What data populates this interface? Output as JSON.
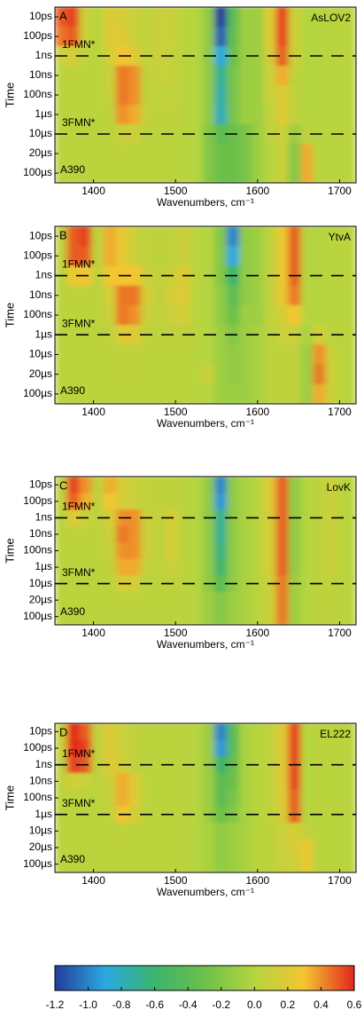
{
  "chart_data": [
    {
      "type": "heatmap",
      "panel": "A",
      "label": "AsLOV2",
      "sample": "A390",
      "ylabel": "Time",
      "xlabel": "Wavenumbers, cm⁻¹",
      "x": [
        1360,
        1375,
        1390,
        1405,
        1420,
        1435,
        1450,
        1465,
        1480,
        1495,
        1510,
        1525,
        1540,
        1555,
        1570,
        1585,
        1600,
        1615,
        1630,
        1645,
        1660,
        1675,
        1690,
        1705,
        1720
      ],
      "categories": [
        "10ps",
        "100ps",
        "1ns",
        "10ns",
        "100ns",
        "1µs",
        "10µs",
        "20µs",
        "100µs"
      ],
      "z": [
        [
          0.5,
          0.55,
          0.1,
          0.02,
          0.2,
          0.15,
          0.1,
          0.05,
          0.1,
          0.1,
          0.02,
          0.0,
          -0.15,
          -1.2,
          -0.4,
          -0.1,
          -0.1,
          0.2,
          0.55,
          0.1,
          0.0,
          0.0,
          0.02,
          0.02,
          0.02
        ],
        [
          0.45,
          0.5,
          0.1,
          0.02,
          0.2,
          0.2,
          0.1,
          0.05,
          0.1,
          0.1,
          0.02,
          0.0,
          -0.15,
          -1.1,
          -0.35,
          -0.1,
          -0.1,
          0.2,
          0.55,
          0.1,
          0.0,
          0.0,
          0.02,
          0.02,
          0.02
        ],
        [
          0.1,
          0.15,
          0.05,
          0.02,
          0.15,
          0.3,
          0.2,
          0.05,
          0.1,
          0.08,
          0.02,
          0.0,
          -0.15,
          -0.9,
          -0.3,
          -0.1,
          -0.1,
          0.15,
          0.5,
          0.1,
          0.0,
          0.0,
          0.02,
          0.02,
          0.02
        ],
        [
          0.03,
          0.05,
          0.03,
          0.02,
          0.1,
          0.45,
          0.4,
          0.05,
          0.08,
          0.08,
          0.02,
          0.0,
          -0.15,
          -0.7,
          -0.25,
          -0.1,
          -0.1,
          0.1,
          0.35,
          0.05,
          0.0,
          0.0,
          0.02,
          0.02,
          0.02
        ],
        [
          0.03,
          0.03,
          0.03,
          0.02,
          0.08,
          0.45,
          0.4,
          0.05,
          0.06,
          0.06,
          0.02,
          0.0,
          -0.15,
          -0.75,
          -0.25,
          -0.1,
          -0.1,
          0.1,
          0.2,
          0.05,
          0.0,
          0.0,
          0.02,
          0.02,
          0.02
        ],
        [
          0.03,
          0.03,
          0.03,
          0.02,
          0.05,
          0.4,
          0.35,
          0.05,
          0.05,
          0.05,
          0.02,
          0.0,
          -0.15,
          -0.8,
          -0.25,
          -0.1,
          -0.1,
          0.05,
          0.2,
          0.05,
          0.0,
          0.0,
          0.02,
          0.02,
          0.02
        ],
        [
          0.03,
          0.03,
          0.03,
          0.02,
          0.03,
          0.1,
          0.1,
          0.03,
          0.03,
          0.03,
          0.02,
          0.0,
          -0.2,
          -0.4,
          -0.3,
          -0.25,
          -0.1,
          0.05,
          0.1,
          -0.1,
          0.05,
          0.0,
          0.02,
          0.02,
          0.02
        ],
        [
          0.03,
          0.03,
          0.03,
          0.02,
          0.03,
          0.05,
          0.03,
          0.03,
          0.03,
          0.03,
          0.02,
          0.0,
          -0.2,
          -0.3,
          -0.3,
          -0.25,
          -0.1,
          0.0,
          0.1,
          -0.2,
          0.35,
          0.0,
          0.02,
          0.02,
          0.02
        ],
        [
          0.03,
          0.03,
          0.03,
          0.02,
          0.03,
          0.03,
          0.03,
          0.03,
          0.03,
          0.03,
          0.02,
          0.0,
          -0.2,
          -0.3,
          -0.3,
          -0.25,
          -0.1,
          0.0,
          0.1,
          -0.2,
          0.35,
          0.0,
          0.02,
          0.02,
          0.02
        ]
      ],
      "xlim": [
        1353,
        1720
      ],
      "xticks": [
        1400,
        1500,
        1600,
        1700
      ],
      "hlines": [
        "1ns",
        "10µs"
      ],
      "annotations": [
        "1FMN*",
        "3FMN*"
      ]
    },
    {
      "type": "heatmap",
      "panel": "B",
      "label": "YtvA",
      "sample": "A390",
      "ylabel": "Time",
      "xlabel": "Wavenumbers, cm⁻¹",
      "x": [
        1360,
        1375,
        1390,
        1405,
        1420,
        1435,
        1450,
        1465,
        1480,
        1495,
        1510,
        1525,
        1540,
        1555,
        1570,
        1585,
        1600,
        1615,
        1630,
        1645,
        1660,
        1675,
        1690,
        1705,
        1720
      ],
      "categories": [
        "10ps",
        "100ps",
        "1ns",
        "10ns",
        "100ns",
        "1µs",
        "10µs",
        "20µs",
        "100µs"
      ],
      "z": [
        [
          0.05,
          0.5,
          0.55,
          0.05,
          0.35,
          0.25,
          0.1,
          0.05,
          0.05,
          0.05,
          0.1,
          0.02,
          0.0,
          -0.2,
          -1.0,
          -0.15,
          -0.1,
          0.05,
          0.25,
          0.5,
          0.0,
          0.0,
          0.02,
          0.02,
          0.02
        ],
        [
          0.05,
          0.5,
          0.5,
          0.05,
          0.35,
          0.25,
          0.1,
          0.05,
          0.05,
          0.05,
          0.1,
          0.02,
          0.0,
          -0.2,
          -0.9,
          -0.15,
          -0.1,
          0.05,
          0.25,
          0.5,
          0.0,
          0.0,
          0.02,
          0.02,
          0.02
        ],
        [
          0.03,
          0.25,
          0.3,
          0.05,
          0.3,
          0.3,
          0.3,
          0.1,
          0.05,
          0.1,
          0.2,
          0.02,
          0.0,
          -0.2,
          -0.6,
          -0.15,
          -0.1,
          0.05,
          0.25,
          0.5,
          0.0,
          0.0,
          0.02,
          0.02,
          0.02
        ],
        [
          0.03,
          0.05,
          0.05,
          0.03,
          0.15,
          0.45,
          0.45,
          0.15,
          0.05,
          0.15,
          0.2,
          0.02,
          0.0,
          -0.15,
          -0.4,
          -0.15,
          -0.1,
          0.05,
          0.25,
          0.45,
          0.0,
          0.0,
          0.02,
          0.02,
          0.02
        ],
        [
          0.03,
          0.03,
          0.03,
          0.03,
          0.1,
          0.45,
          0.4,
          0.1,
          0.05,
          0.1,
          0.15,
          0.02,
          0.0,
          -0.15,
          -0.3,
          -0.1,
          -0.1,
          0.05,
          0.15,
          0.3,
          0.0,
          0.0,
          0.02,
          0.02,
          0.02
        ],
        [
          0.03,
          0.03,
          0.03,
          0.03,
          0.05,
          0.2,
          0.2,
          0.05,
          0.03,
          0.05,
          0.05,
          0.02,
          0.0,
          -0.1,
          -0.2,
          -0.1,
          -0.05,
          0.03,
          0.1,
          0.1,
          -0.05,
          0.15,
          0.02,
          0.02,
          0.02
        ],
        [
          0.03,
          0.03,
          0.03,
          0.03,
          0.03,
          0.05,
          0.05,
          0.03,
          0.03,
          0.03,
          0.03,
          0.02,
          0.0,
          -0.1,
          -0.15,
          -0.1,
          -0.05,
          0.03,
          0.05,
          0.05,
          -0.1,
          0.4,
          0.1,
          0.02,
          0.02
        ],
        [
          0.03,
          0.03,
          0.03,
          0.03,
          0.03,
          0.05,
          0.05,
          0.03,
          0.03,
          0.03,
          0.03,
          0.02,
          0.1,
          -0.1,
          -0.15,
          -0.1,
          -0.05,
          0.03,
          0.05,
          0.05,
          -0.1,
          0.45,
          0.1,
          0.02,
          0.02
        ],
        [
          0.03,
          0.03,
          0.03,
          0.03,
          0.03,
          0.03,
          0.03,
          0.03,
          0.03,
          0.03,
          0.03,
          0.02,
          0.0,
          -0.1,
          -0.1,
          -0.1,
          -0.05,
          0.03,
          0.05,
          0.05,
          -0.1,
          0.35,
          0.1,
          0.02,
          0.02
        ]
      ],
      "xlim": [
        1353,
        1720
      ],
      "xticks": [
        1400,
        1500,
        1600,
        1700
      ],
      "hlines": [
        "1ns",
        "1µs"
      ],
      "annotations": [
        "1FMN*",
        "3FMN*"
      ]
    },
    {
      "type": "heatmap",
      "panel": "C",
      "label": "LovK",
      "sample": "A390",
      "ylabel": "Time",
      "xlabel": "Wavenumbers, cm⁻¹",
      "x": [
        1360,
        1375,
        1390,
        1405,
        1420,
        1435,
        1450,
        1465,
        1480,
        1495,
        1510,
        1525,
        1540,
        1555,
        1570,
        1585,
        1600,
        1615,
        1630,
        1645,
        1660,
        1675,
        1690,
        1705,
        1720
      ],
      "categories": [
        "10ps",
        "100ps",
        "1ns",
        "10ns",
        "100ns",
        "1µs",
        "10µs",
        "20µs",
        "100µs"
      ],
      "z": [
        [
          0.05,
          0.55,
          0.4,
          0.05,
          0.35,
          0.15,
          0.1,
          0.05,
          0.05,
          0.05,
          0.03,
          0.0,
          -0.15,
          -1.0,
          -0.15,
          -0.05,
          0.02,
          0.2,
          0.5,
          -0.15,
          0.0,
          0.05,
          0.1,
          0.02,
          0.02
        ],
        [
          0.05,
          0.5,
          0.35,
          0.05,
          0.3,
          0.15,
          0.1,
          0.05,
          0.05,
          0.05,
          0.03,
          0.0,
          -0.15,
          -0.95,
          -0.15,
          -0.05,
          0.02,
          0.2,
          0.5,
          -0.15,
          0.0,
          0.05,
          0.1,
          0.02,
          0.02
        ],
        [
          0.03,
          0.2,
          0.1,
          0.03,
          0.15,
          0.4,
          0.4,
          0.1,
          0.05,
          0.15,
          0.03,
          0.0,
          -0.15,
          -0.7,
          -0.15,
          -0.05,
          0.02,
          0.15,
          0.5,
          -0.15,
          0.0,
          0.05,
          0.1,
          0.02,
          0.02
        ],
        [
          0.03,
          0.05,
          0.05,
          0.03,
          0.1,
          0.45,
          0.4,
          0.1,
          0.05,
          0.15,
          0.03,
          0.0,
          -0.15,
          -0.7,
          -0.15,
          -0.05,
          0.02,
          0.15,
          0.5,
          -0.15,
          0.0,
          0.05,
          0.1,
          0.02,
          0.02
        ],
        [
          0.03,
          0.03,
          0.03,
          0.03,
          0.08,
          0.4,
          0.4,
          0.1,
          0.05,
          0.15,
          0.03,
          0.0,
          -0.15,
          -0.65,
          -0.15,
          -0.05,
          0.02,
          0.15,
          0.5,
          -0.15,
          0.0,
          0.05,
          0.1,
          0.02,
          0.02
        ],
        [
          0.03,
          0.03,
          0.03,
          0.03,
          0.05,
          0.35,
          0.35,
          0.05,
          0.05,
          0.1,
          0.03,
          0.0,
          -0.15,
          -0.6,
          -0.15,
          -0.05,
          0.02,
          0.15,
          0.5,
          -0.15,
          0.0,
          0.05,
          0.1,
          0.02,
          0.02
        ],
        [
          0.03,
          0.03,
          0.03,
          0.03,
          0.03,
          0.15,
          0.15,
          0.03,
          0.03,
          0.05,
          0.03,
          0.0,
          -0.15,
          -0.4,
          -0.15,
          -0.05,
          0.02,
          0.1,
          0.45,
          -0.1,
          0.0,
          0.05,
          0.05,
          0.02,
          0.02
        ],
        [
          0.03,
          0.03,
          0.03,
          0.03,
          0.03,
          0.05,
          0.05,
          0.03,
          0.03,
          0.03,
          0.03,
          0.0,
          -0.1,
          -0.2,
          -0.1,
          -0.05,
          0.02,
          0.1,
          0.45,
          -0.1,
          0.0,
          0.05,
          0.05,
          0.02,
          0.02
        ],
        [
          0.03,
          0.03,
          0.03,
          0.03,
          0.03,
          0.03,
          0.03,
          0.03,
          0.03,
          0.03,
          0.03,
          0.0,
          -0.1,
          -0.2,
          -0.1,
          -0.05,
          0.02,
          0.1,
          0.45,
          -0.1,
          0.0,
          0.05,
          0.05,
          0.02,
          0.02
        ]
      ],
      "xlim": [
        1353,
        1720
      ],
      "xticks": [
        1400,
        1500,
        1600,
        1700
      ],
      "hlines": [
        "1ns",
        "10µs"
      ],
      "annotations": [
        "1FMN*",
        "3FMN*"
      ]
    },
    {
      "type": "heatmap",
      "panel": "D",
      "label": "EL222",
      "sample": "A390",
      "ylabel": "Time",
      "xlabel": "Wavenumbers, cm⁻¹",
      "x": [
        1360,
        1375,
        1390,
        1405,
        1420,
        1435,
        1450,
        1465,
        1480,
        1495,
        1510,
        1525,
        1540,
        1555,
        1570,
        1585,
        1600,
        1615,
        1630,
        1645,
        1660,
        1675,
        1690,
        1705,
        1720
      ],
      "categories": [
        "10ps",
        "100ps",
        "1ns",
        "10ns",
        "100ns",
        "1µs",
        "10µs",
        "20µs",
        "100µs"
      ],
      "z": [
        [
          0.1,
          0.6,
          0.5,
          0.05,
          0.2,
          0.1,
          0.05,
          0.03,
          0.03,
          0.03,
          0.03,
          0.0,
          -0.1,
          -1.0,
          -0.4,
          -0.05,
          0.02,
          0.05,
          0.2,
          0.55,
          0.0,
          0.02,
          0.02,
          0.02,
          0.02
        ],
        [
          0.1,
          0.6,
          0.55,
          0.05,
          0.2,
          0.1,
          0.05,
          0.03,
          0.03,
          0.03,
          0.03,
          0.0,
          -0.1,
          -0.95,
          -0.4,
          -0.05,
          0.02,
          0.05,
          0.2,
          0.55,
          0.0,
          0.02,
          0.02,
          0.02,
          0.02
        ],
        [
          0.05,
          0.55,
          0.5,
          0.05,
          0.2,
          0.15,
          0.05,
          0.03,
          0.03,
          0.03,
          0.03,
          0.0,
          -0.1,
          -0.6,
          -0.35,
          -0.05,
          0.02,
          0.05,
          0.2,
          0.55,
          0.0,
          0.02,
          0.02,
          0.02,
          0.02
        ],
        [
          0.03,
          0.15,
          0.1,
          0.03,
          0.1,
          0.35,
          0.2,
          0.03,
          0.03,
          0.03,
          0.03,
          0.0,
          -0.1,
          -0.4,
          -0.3,
          -0.05,
          0.02,
          0.05,
          0.2,
          0.55,
          0.0,
          0.02,
          0.02,
          0.02,
          0.02
        ],
        [
          0.03,
          0.03,
          0.03,
          0.03,
          0.08,
          0.35,
          0.2,
          0.03,
          0.03,
          0.03,
          0.03,
          0.0,
          -0.1,
          -0.4,
          -0.25,
          -0.05,
          0.02,
          0.05,
          0.2,
          0.5,
          0.0,
          0.02,
          0.02,
          0.02,
          0.02
        ],
        [
          0.03,
          0.03,
          0.03,
          0.03,
          0.05,
          0.3,
          0.15,
          0.03,
          0.03,
          0.03,
          0.03,
          0.0,
          -0.1,
          -0.3,
          -0.2,
          -0.05,
          0.02,
          0.05,
          0.15,
          0.5,
          0.0,
          0.02,
          0.02,
          0.02,
          0.02
        ],
        [
          0.03,
          0.03,
          0.03,
          0.03,
          0.03,
          0.05,
          0.03,
          0.03,
          0.03,
          0.03,
          0.03,
          0.0,
          -0.05,
          -0.15,
          -0.1,
          -0.05,
          0.02,
          0.03,
          0.1,
          0.15,
          0.05,
          0.02,
          0.02,
          0.02,
          0.02
        ],
        [
          0.03,
          0.03,
          0.03,
          0.03,
          0.03,
          0.03,
          0.03,
          0.03,
          0.03,
          0.03,
          0.03,
          0.0,
          -0.05,
          -0.15,
          -0.1,
          -0.05,
          0.02,
          0.03,
          0.1,
          0.15,
          0.25,
          0.02,
          0.02,
          0.02,
          0.02
        ],
        [
          0.03,
          0.03,
          0.03,
          0.03,
          0.03,
          0.03,
          0.03,
          0.03,
          0.03,
          0.03,
          0.03,
          0.0,
          -0.05,
          -0.15,
          -0.1,
          -0.05,
          0.02,
          0.03,
          0.1,
          0.1,
          0.25,
          0.02,
          0.02,
          0.02,
          0.02
        ]
      ],
      "xlim": [
        1353,
        1720
      ],
      "xticks": [
        1400,
        1500,
        1600,
        1700
      ],
      "hlines": [
        "1ns",
        "1µs"
      ],
      "annotations": [
        "1FMN*",
        "3FMN*"
      ]
    }
  ],
  "colorbar": {
    "range": [
      -1.2,
      0.6
    ],
    "colors": [
      "#243c9c",
      "#2aa8e0",
      "#3cb46e",
      "#6cc04a",
      "#b5d53f",
      "#f3c531",
      "#e3261e"
    ],
    "ticks": [
      -1.2,
      {
        "value": -1.0,
        "label": "-1.0"
      },
      -0.8,
      -0.6,
      -0.4,
      -0.2,
      {
        "value": 0.0,
        "label": "0.0"
      },
      0.2,
      0.4,
      0.6
    ]
  }
}
